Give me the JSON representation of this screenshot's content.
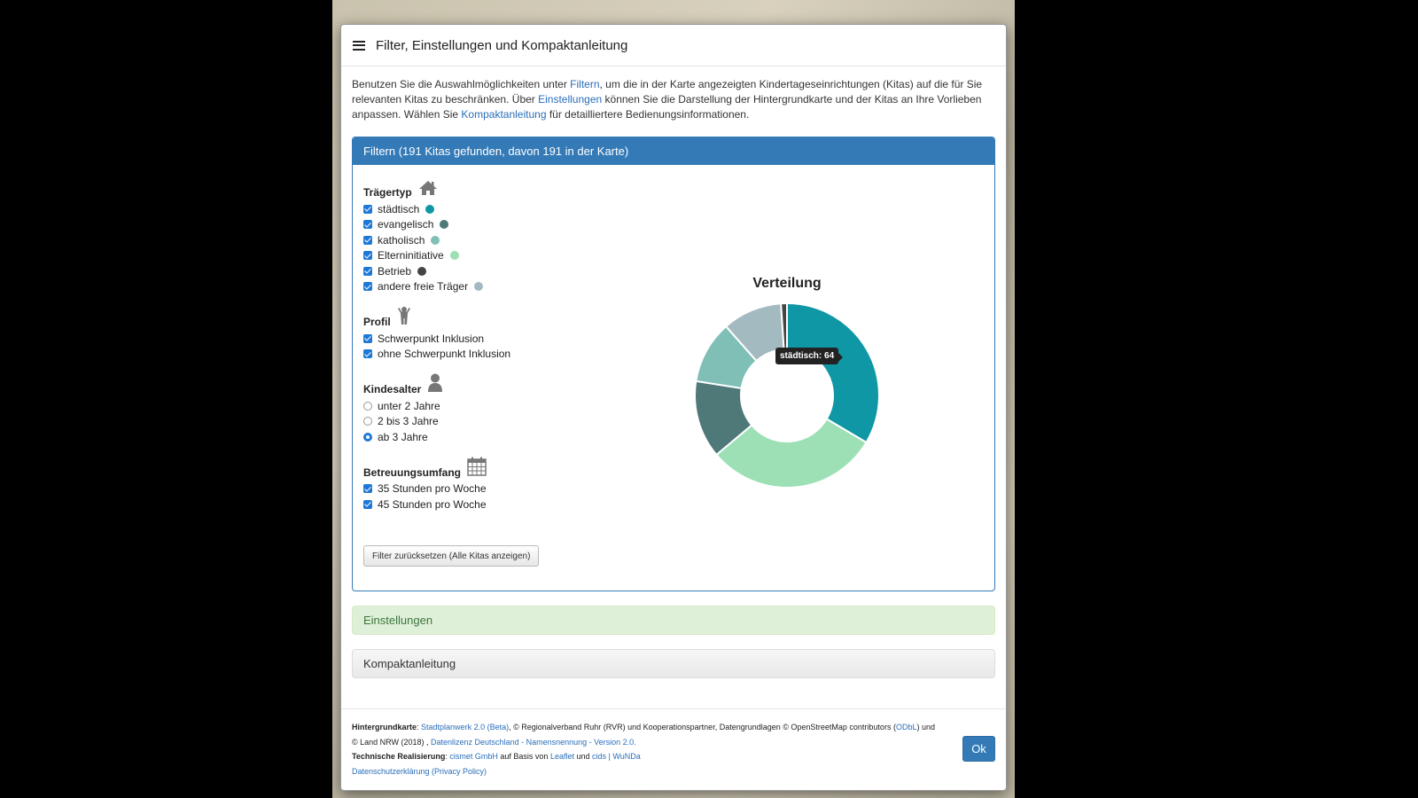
{
  "modal": {
    "title": "Filter, Einstellungen und Kompaktanleitung",
    "intro": {
      "p1": "Benutzen Sie die Auswahlmöglichkeiten unter ",
      "link_filter": "Filtern",
      "p2": ", um die in der Karte angezeigten Kindertageseinrichtungen (Kitas) auf die für Sie relevanten Kitas zu beschränken. Über ",
      "link_settings": "Einstellungen",
      "p3": " können Sie die Darstellung der Hintergrundkarte und der Kitas an Ihre Vorlieben anpassen. Wählen Sie ",
      "link_guide": "Kompaktanleitung",
      "p4": " für detailliertere Bedienungsinformationen."
    }
  },
  "filter_panel": {
    "heading": "Filtern (191 Kitas gefunden, davon 191 in der Karte)",
    "traegertyp": {
      "title": "Trägertyp",
      "icon": "house-icon",
      "items": [
        {
          "label": "städtisch",
          "color": "#0f97a5",
          "checked": true
        },
        {
          "label": "evangelisch",
          "color": "#4f7878",
          "checked": true
        },
        {
          "label": "katholisch",
          "color": "#7fbfb6",
          "checked": true
        },
        {
          "label": "Elterninitiative",
          "color": "#9de0b5",
          "checked": true
        },
        {
          "label": "Betrieb",
          "color": "#444444",
          "checked": true
        },
        {
          "label": "andere freie Träger",
          "color": "#a3bac0",
          "checked": true
        }
      ]
    },
    "profil": {
      "title": "Profil",
      "icon": "child-icon",
      "items": [
        {
          "label": "Schwerpunkt Inklusion",
          "checked": true
        },
        {
          "label": "ohne Schwerpunkt Inklusion",
          "checked": true
        }
      ]
    },
    "kindesalter": {
      "title": "Kindesalter",
      "icon": "user-icon",
      "items": [
        {
          "label": "unter 2 Jahre",
          "selected": false
        },
        {
          "label": "2 bis 3 Jahre",
          "selected": false
        },
        {
          "label": "ab 3 Jahre",
          "selected": true
        }
      ]
    },
    "betreuungsumfang": {
      "title": "Betreuungsumfang",
      "icon": "calendar-icon",
      "items": [
        {
          "label": "35 Stunden pro Woche",
          "checked": true
        },
        {
          "label": "45 Stunden pro Woche",
          "checked": true
        }
      ]
    },
    "reset_label": "Filter zurücksetzen (Alle Kitas anzeigen)"
  },
  "chart_data": {
    "type": "pie",
    "title": "Verteilung",
    "categories": [
      "städtisch",
      "Elterninitiative",
      "evangelisch",
      "katholisch",
      "andere freie Träger",
      "Betrieb"
    ],
    "values": [
      64,
      58,
      26,
      21,
      20,
      2
    ],
    "colors": [
      "#0f97a5",
      "#9de0b5",
      "#4f7878",
      "#7fbfb6",
      "#a3bac0",
      "#444444"
    ],
    "tooltip": "städtisch: 64"
  },
  "accordion": {
    "settings_label": "Einstellungen",
    "guide_label": "Kompaktanleitung"
  },
  "footer": {
    "map_label": "Hintergrundkarte",
    "map_link": "Stadtplanwerk 2.0 (Beta)",
    "map_text1": ", © Regionalverband Ruhr (RVR) und Kooperationspartner, Datengrundlagen © OpenStreetMap contributors (",
    "odbl_link": "ODbL",
    "map_text2": ") und © Land NRW (2018) , ",
    "license_link": "Datenlizenz Deutschland - Namensnennung - Version 2.0.",
    "tech_label": "Technische Realisierung",
    "cismet_link": "cismet GmbH",
    "tech_text1": " auf Basis von ",
    "leaflet_link": "Leaflet",
    "tech_text2": " und ",
    "cids_link": "cids | WuNDa",
    "privacy_link": "Datenschutzerklärung (Privacy Policy)",
    "ok_label": "Ok"
  }
}
